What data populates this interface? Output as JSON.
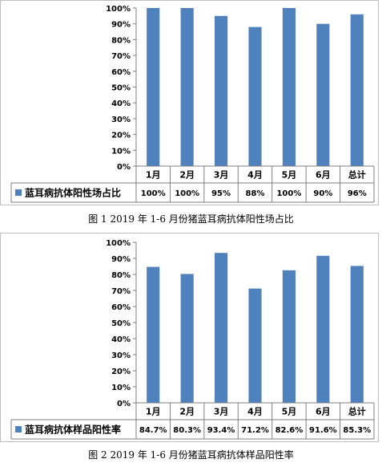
{
  "chart_data": [
    {
      "type": "bar",
      "categories": [
        "1月",
        "2月",
        "3月",
        "4月",
        "5月",
        "6月",
        "总计"
      ],
      "series": [
        {
          "name": "蓝耳病抗体阳性场占比",
          "values": [
            100,
            100,
            95,
            88,
            100,
            90,
            96
          ]
        }
      ],
      "table_values": [
        "100%",
        "100%",
        "95%",
        "88%",
        "100%",
        "90%",
        "96%"
      ],
      "yticks": [
        "0%",
        "10%",
        "20%",
        "30%",
        "40%",
        "50%",
        "60%",
        "70%",
        "80%",
        "90%",
        "100%"
      ],
      "ylim": [
        0,
        100
      ],
      "grid": false,
      "legend": "data-table",
      "bar_color": "#4f81bd",
      "caption": "图 1    2019 年 1-6 月份猪蓝耳病抗体阳性场占比"
    },
    {
      "type": "bar",
      "categories": [
        "1月",
        "2月",
        "3月",
        "4月",
        "5月",
        "6月",
        "总计"
      ],
      "series": [
        {
          "name": "蓝耳病抗体样品阳性率",
          "values": [
            84.7,
            80.3,
            93.4,
            71.2,
            82.6,
            91.6,
            85.3
          ]
        }
      ],
      "table_values": [
        "84.7%",
        "80.3%",
        "93.4%",
        "71.2%",
        "82.6%",
        "91.6%",
        "85.3%"
      ],
      "yticks": [
        "0%",
        "10%",
        "20%",
        "30%",
        "40%",
        "50%",
        "60%",
        "70%",
        "80%",
        "90%",
        "100%"
      ],
      "ylim": [
        0,
        100
      ],
      "grid": false,
      "legend": "data-table",
      "bar_color": "#4f81bd",
      "caption": "图 2    2019 年 1-6 月份猪蓝耳病抗体样品阳性率"
    }
  ]
}
